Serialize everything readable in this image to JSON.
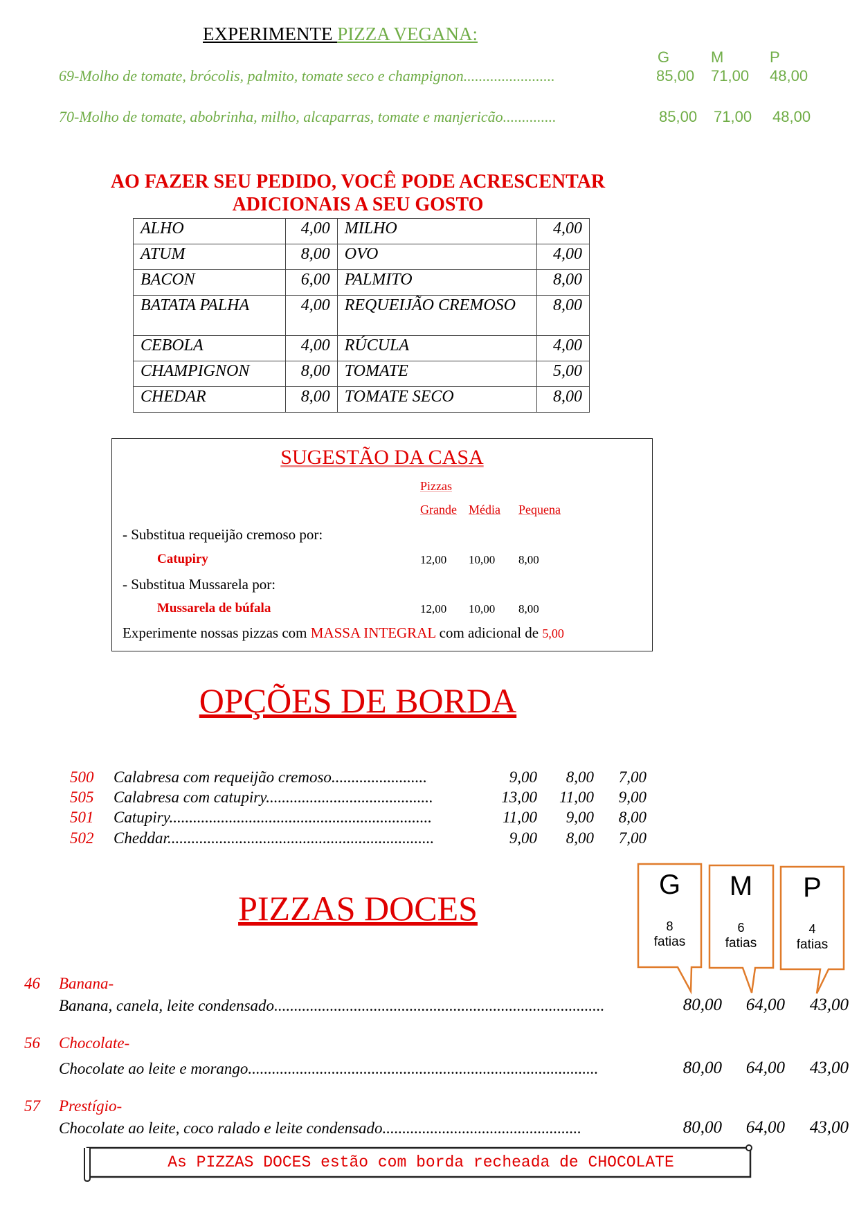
{
  "vegan": {
    "title_black": "EXPERIMENTE ",
    "title_green": "PIZZA VEGANA:",
    "sizes": [
      "G",
      "M",
      "P"
    ],
    "items": [
      {
        "text": "69-Molho de tomate, brócolis, palmito, tomate seco e champignon",
        "dots": "........................",
        "prices": [
          "85,00",
          "71,00",
          "48,00"
        ]
      },
      {
        "text": "70-Molho de tomate, abobrinha, milho, alcaparras, tomate e manjericão",
        "dots": "..............",
        "prices": [
          "85,00",
          "71,00",
          "48,00"
        ]
      }
    ]
  },
  "additions": {
    "heading_line1": "AO FAZER SEU PEDIDO, VOCÊ PODE ACRESCENTAR",
    "heading_line2": "ADICIONAIS A SEU GOSTO",
    "rows": [
      [
        "ALHO",
        "4,00",
        "MILHO",
        "4,00"
      ],
      [
        "ATUM",
        "8,00",
        "OVO",
        "4,00"
      ],
      [
        "BACON",
        "6,00",
        "PALMITO",
        "8,00"
      ],
      [
        "BATATA PALHA",
        "4,00",
        "REQUEIJÃO CREMOSO",
        "8,00"
      ],
      [
        "CEBOLA",
        "4,00",
        "RÚCULA",
        "4,00"
      ],
      [
        "CHAMPIGNON",
        "8,00",
        "TOMATE",
        "5,00"
      ],
      [
        "CHEDAR",
        "8,00",
        "TOMATE SECO",
        "8,00"
      ]
    ]
  },
  "suggestion": {
    "title": "SUGESTÃO DA CASA",
    "pizzas_label": "Pizzas",
    "cols": [
      "Grande",
      "Média",
      "Pequena"
    ],
    "line1": "- Substitua requeijão cremoso por:",
    "item1": "Catupiry",
    "prices1": [
      "12,00",
      "10,00",
      "8,00"
    ],
    "line2": "- Substitua Mussarela por:",
    "item2": "Mussarela de búfala",
    "prices2": [
      "12,00",
      "10,00",
      "8,00"
    ],
    "footer_a": "Experimente nossas pizzas com ",
    "footer_red": "MASSA INTEGRAL",
    "footer_b": " com adicional de ",
    "footer_price": "5,00"
  },
  "borda": {
    "title": "OPÇÕES DE BORDA",
    "items": [
      {
        "num": "500",
        "name": "Calabresa com requeijão cremoso",
        "dots": "........................",
        "prices": [
          "9,00",
          "8,00",
          "7,00"
        ]
      },
      {
        "num": "505",
        "name": "Calabresa com catupiry",
        "dots": "..........................................",
        "prices": [
          "13,00",
          "11,00",
          "9,00"
        ]
      },
      {
        "num": "501",
        "name": "Catupiry",
        "dots": "..................................................................",
        "prices": [
          "11,00",
          "9,00",
          "8,00"
        ]
      },
      {
        "num": "502",
        "name": "Cheddar",
        "dots": "...................................................................",
        "prices": [
          "9,00",
          "8,00",
          "7,00"
        ]
      }
    ]
  },
  "doces": {
    "title": "PIZZAS DOCES",
    "sizes": [
      {
        "letter": "G",
        "count": "8",
        "unit": "fatias"
      },
      {
        "letter": "M",
        "count": "6",
        "unit": "fatias"
      },
      {
        "letter": "P",
        "count": "4",
        "unit": "fatias"
      }
    ],
    "accent_color": "#e07b2a",
    "items": [
      {
        "num": "46",
        "name": "Banana-",
        "desc": "Banana, canela, leite condensado",
        "dots": "...................................................................................",
        "prices": [
          "80,00",
          "64,00",
          "43,00"
        ]
      },
      {
        "num": "56",
        "name": "Chocolate-",
        "desc": "Chocolate ao leite e morango",
        "dots": "........................................................................................",
        "prices": [
          "80,00",
          "64,00",
          "43,00"
        ]
      },
      {
        "num": "57",
        "name": "Prestígio-",
        "desc": "Chocolate ao leite, coco ralado e leite condensado",
        "dots": "..................................................",
        "prices": [
          "80,00",
          "64,00",
          "43,00"
        ]
      }
    ],
    "banner": "As PIZZAS DOCES estão com borda recheada de CHOCOLATE"
  }
}
